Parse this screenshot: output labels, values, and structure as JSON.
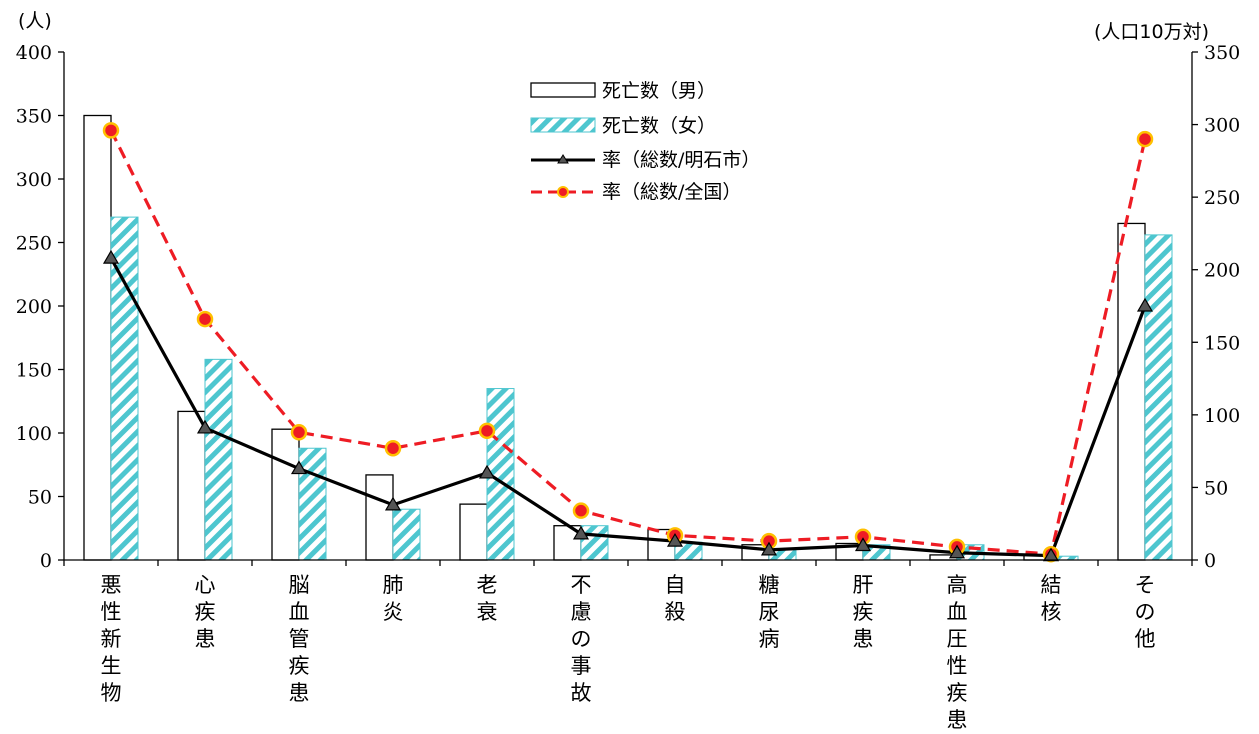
{
  "chart_data": {
    "type": "bar",
    "title": "",
    "left_unit": "(人)",
    "right_unit": "(人口10万対)",
    "categories": [
      "悪性新生物",
      "心疾患",
      "脳血管疾患",
      "肺炎",
      "老衰",
      "不慮の事故",
      "自殺",
      "糖尿病",
      "肝疾患",
      "高血圧性疾患",
      "結核",
      "その他"
    ],
    "left_axis": {
      "min": 0,
      "max": 400,
      "ticks": [
        0,
        50,
        100,
        150,
        200,
        250,
        300,
        350,
        400
      ]
    },
    "right_axis": {
      "min": 0,
      "max": 350,
      "ticks": [
        0,
        50,
        100,
        150,
        200,
        250,
        300,
        350
      ]
    },
    "series": [
      {
        "name": "死亡数（男）",
        "kind": "bar",
        "axis": "left",
        "color": "#ffffff",
        "values": [
          350,
          117,
          103,
          67,
          44,
          27,
          24,
          12,
          13,
          4,
          4,
          265
        ]
      },
      {
        "name": "死亡数（女）",
        "kind": "bar",
        "axis": "left",
        "color": "#4ec6cf",
        "values": [
          270,
          158,
          88,
          40,
          135,
          27,
          14,
          8,
          12,
          12,
          3,
          256
        ]
      },
      {
        "name": "率（総数/明石市）",
        "kind": "line",
        "axis": "right",
        "color": "#000000",
        "values": [
          208,
          91,
          63,
          38,
          60,
          18,
          13,
          7,
          10,
          5,
          3,
          175
        ]
      },
      {
        "name": "率（総数/全国）",
        "kind": "line",
        "axis": "right",
        "color": "#ee1c24",
        "values": [
          296,
          166,
          88,
          77,
          89,
          34,
          17,
          13,
          16,
          9,
          4,
          290
        ]
      }
    ],
    "legend": "top-center"
  }
}
